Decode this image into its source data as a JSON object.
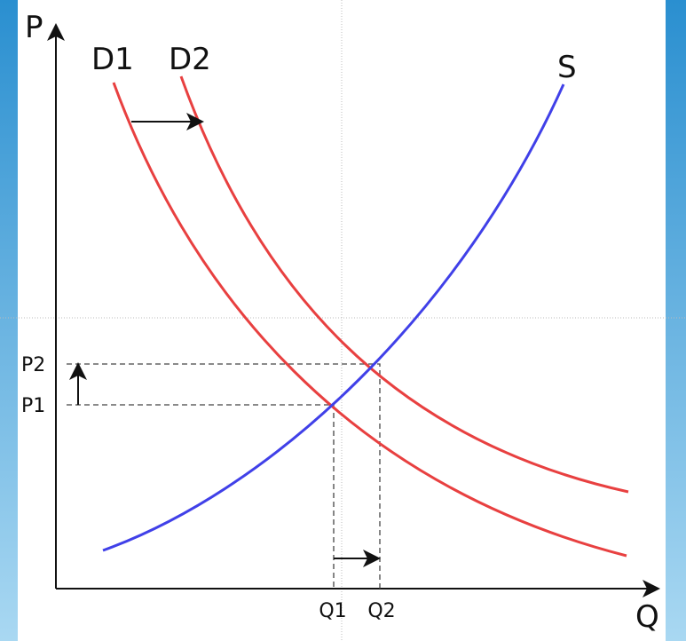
{
  "axes": {
    "y_label": "P",
    "x_label": "Q"
  },
  "curves": {
    "demand_1": "D1",
    "demand_2": "D2",
    "supply": "S"
  },
  "prices": [
    "P1",
    "P2"
  ],
  "quantities": [
    "Q1",
    "Q2"
  ]
}
